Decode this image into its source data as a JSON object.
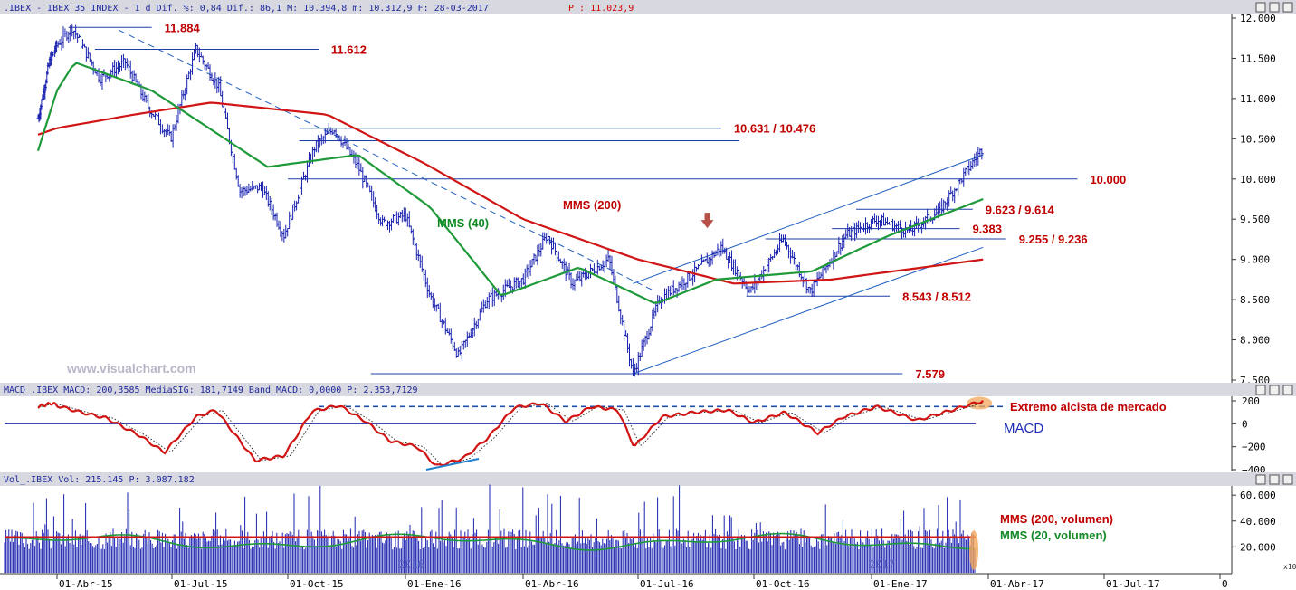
{
  "header_price": ".IBEX - IBEX 35 INDEX -  1 d Dif. %: 0,84 Dif.: 86,1 M: 10.394,8 m: 10.312,9 F: 28-03-2017",
  "header_price_p": "P : 11.023,9",
  "header_macd": "MACD_.IBEX MACD: 200,3585 MediaSIG: 181,7149 Band_MACD: 0,0000 P: 2.353,7129",
  "header_vol": "Vol_.IBEX Vol: 215.145 P: 3.087.182",
  "watermark": "www.visualchart.com",
  "macd_title": "MACD",
  "year_marks": [
    "2016",
    "2017"
  ],
  "volume_scale_note": "x10",
  "colors": {
    "candles": "#1a22b0",
    "mms200": "#d11414",
    "mms40": "#1f9a3a",
    "levels": "#1f3fa8",
    "header": "#1f2a9a",
    "highlight": "#f2a65a"
  },
  "chart_data": [
    {
      "type": "ohlc",
      "title": "IBEX 35 INDEX",
      "x_axis": {
        "labels": [
          "01-Abr-15",
          "01-Jul-15",
          "01-Oct-15",
          "01-Ene-16",
          "01-Abr-16",
          "01-Jul-16",
          "01-Oct-16",
          "01-Ene-17",
          "01-Abr-17",
          "01-Jul-17",
          "0"
        ]
      },
      "y_axis": {
        "ticks": [
          "12.000",
          "11.500",
          "11.000",
          "10.500",
          "10.000",
          "9.500",
          "9.000",
          "8.500",
          "8.000",
          "7.500"
        ],
        "ylim": [
          7500,
          12050
        ]
      },
      "price_path": [
        {
          "x": "2015-03-02",
          "y": 10750
        },
        {
          "x": "2015-03-20",
          "y": 11450
        },
        {
          "x": "2015-04-13",
          "y": 11884
        },
        {
          "x": "2015-05-05",
          "y": 11250
        },
        {
          "x": "2015-05-25",
          "y": 11450
        },
        {
          "x": "2015-06-12",
          "y": 10900
        },
        {
          "x": "2015-06-30",
          "y": 10500
        },
        {
          "x": "2015-07-20",
          "y": 11612
        },
        {
          "x": "2015-08-07",
          "y": 11150
        },
        {
          "x": "2015-08-24",
          "y": 9850
        },
        {
          "x": "2015-09-10",
          "y": 9900
        },
        {
          "x": "2015-09-28",
          "y": 9300
        },
        {
          "x": "2015-10-22",
          "y": 10400
        },
        {
          "x": "2015-11-06",
          "y": 10631
        },
        {
          "x": "2015-11-25",
          "y": 10150
        },
        {
          "x": "2015-12-14",
          "y": 9450
        },
        {
          "x": "2016-01-01",
          "y": 9550
        },
        {
          "x": "2016-01-20",
          "y": 8550
        },
        {
          "x": "2016-02-11",
          "y": 7800
        },
        {
          "x": "2016-03-04",
          "y": 8500
        },
        {
          "x": "2016-04-01",
          "y": 8750
        },
        {
          "x": "2016-04-20",
          "y": 9300
        },
        {
          "x": "2016-05-10",
          "y": 8700
        },
        {
          "x": "2016-06-08",
          "y": 9000
        },
        {
          "x": "2016-06-27",
          "y": 7579
        },
        {
          "x": "2016-07-18",
          "y": 8500
        },
        {
          "x": "2016-08-12",
          "y": 8800
        },
        {
          "x": "2016-09-05",
          "y": 9150
        },
        {
          "x": "2016-09-28",
          "y": 8600
        },
        {
          "x": "2016-10-24",
          "y": 9250
        },
        {
          "x": "2016-11-14",
          "y": 8600
        },
        {
          "x": "2016-12-12",
          "y": 9300
        },
        {
          "x": "2017-01-05",
          "y": 9500
        },
        {
          "x": "2017-01-30",
          "y": 9350
        },
        {
          "x": "2017-02-22",
          "y": 9600
        },
        {
          "x": "2017-03-28",
          "y": 10394
        }
      ],
      "mms200_path": [
        {
          "x": "2015-03-02",
          "y": 10550
        },
        {
          "x": "2015-06-01",
          "y": 10800
        },
        {
          "x": "2015-08-01",
          "y": 10950
        },
        {
          "x": "2015-11-01",
          "y": 10800
        },
        {
          "x": "2016-01-15",
          "y": 10200
        },
        {
          "x": "2016-04-01",
          "y": 9500
        },
        {
          "x": "2016-07-01",
          "y": 9000
        },
        {
          "x": "2016-09-15",
          "y": 8700
        },
        {
          "x": "2016-12-01",
          "y": 8750
        },
        {
          "x": "2017-03-28",
          "y": 9000
        }
      ],
      "mms40_path": [
        {
          "x": "2015-03-02",
          "y": 10350
        },
        {
          "x": "2015-04-15",
          "y": 11450
        },
        {
          "x": "2015-06-15",
          "y": 11100
        },
        {
          "x": "2015-09-15",
          "y": 10150
        },
        {
          "x": "2015-11-25",
          "y": 10300
        },
        {
          "x": "2016-01-20",
          "y": 9650
        },
        {
          "x": "2016-03-15",
          "y": 8550
        },
        {
          "x": "2016-05-15",
          "y": 8900
        },
        {
          "x": "2016-07-15",
          "y": 8450
        },
        {
          "x": "2016-09-01",
          "y": 8750
        },
        {
          "x": "2016-11-15",
          "y": 8850
        },
        {
          "x": "2017-01-15",
          "y": 9300
        },
        {
          "x": "2017-03-28",
          "y": 9750
        }
      ],
      "levels": [
        {
          "label": "11.884",
          "value": 11884,
          "from": "2015-04-10",
          "to": "2015-06-15"
        },
        {
          "label": "11.612",
          "value": 11612,
          "from": "2015-05-01",
          "to": "2015-10-25"
        },
        {
          "label": "10.631 / 10.476",
          "value": 10631,
          "value2": 10476,
          "from": "2015-10-10",
          "to": "2016-09-05"
        },
        {
          "label": "10.000",
          "value": 10000,
          "from": "2015-10-01",
          "to": "2017-06-10"
        },
        {
          "label": "9.623 / 9.614",
          "value": 9623,
          "from": "2016-12-20",
          "to": "2017-03-20"
        },
        {
          "label": "9.383",
          "value": 9383,
          "from": "2016-12-01",
          "to": "2017-03-10"
        },
        {
          "label": "9.255 / 9.236",
          "value": 9255,
          "value2": 9236,
          "from": "2016-10-10",
          "to": "2017-04-15"
        },
        {
          "label": "8.543 / 8.512",
          "value": 8543,
          "from": "2016-09-25",
          "to": "2017-01-15"
        },
        {
          "label": "7.579",
          "value": 7579,
          "from": "2015-12-05",
          "to": "2017-01-25"
        }
      ],
      "trendlines": [
        {
          "style": "dashed",
          "from": {
            "x": "2015-05-20",
            "y": 11850
          },
          "to": {
            "x": "2016-07-15",
            "y": 8600
          }
        },
        {
          "style": "solid",
          "from": {
            "x": "2016-06-27",
            "y": 8700
          },
          "to": {
            "x": "2017-03-28",
            "y": 10300
          }
        },
        {
          "style": "solid",
          "from": {
            "x": "2016-06-27",
            "y": 7579
          },
          "to": {
            "x": "2017-03-28",
            "y": 9150
          }
        }
      ],
      "annotations": [
        {
          "text": "MMS (200)",
          "color": "#c00000"
        },
        {
          "text": "MMS (40)",
          "color": "#128a24"
        }
      ],
      "arrow": {
        "x": "2016-08-25",
        "y": 9400
      }
    },
    {
      "type": "line",
      "title": "MACD",
      "y_axis": {
        "ticks": [
          "200",
          "0",
          "−200",
          "−400"
        ],
        "ylim": [
          -430,
          230
        ]
      },
      "series_path": [
        {
          "x": "2015-03-02",
          "y": 150
        },
        {
          "x": "2015-03-25",
          "y": 180
        },
        {
          "x": "2015-04-20",
          "y": 100
        },
        {
          "x": "2015-05-10",
          "y": 50
        },
        {
          "x": "2015-06-05",
          "y": -100
        },
        {
          "x": "2015-06-25",
          "y": -250
        },
        {
          "x": "2015-07-20",
          "y": 60
        },
        {
          "x": "2015-08-05",
          "y": 120
        },
        {
          "x": "2015-09-05",
          "y": -320
        },
        {
          "x": "2015-09-28",
          "y": -280
        },
        {
          "x": "2015-10-20",
          "y": 110
        },
        {
          "x": "2015-11-10",
          "y": 160
        },
        {
          "x": "2015-12-01",
          "y": 20
        },
        {
          "x": "2015-12-20",
          "y": -150
        },
        {
          "x": "2016-01-10",
          "y": -200
        },
        {
          "x": "2016-01-25",
          "y": -370
        },
        {
          "x": "2016-02-15",
          "y": -300
        },
        {
          "x": "2016-03-05",
          "y": -120
        },
        {
          "x": "2016-03-25",
          "y": 140
        },
        {
          "x": "2016-04-15",
          "y": 180
        },
        {
          "x": "2016-05-05",
          "y": 20
        },
        {
          "x": "2016-05-25",
          "y": 150
        },
        {
          "x": "2016-06-15",
          "y": 120
        },
        {
          "x": "2016-06-28",
          "y": -200
        },
        {
          "x": "2016-07-20",
          "y": 60
        },
        {
          "x": "2016-08-15",
          "y": 100
        },
        {
          "x": "2016-09-10",
          "y": 120
        },
        {
          "x": "2016-10-01",
          "y": 10
        },
        {
          "x": "2016-10-25",
          "y": 100
        },
        {
          "x": "2016-11-20",
          "y": -80
        },
        {
          "x": "2016-12-10",
          "y": 60
        },
        {
          "x": "2017-01-05",
          "y": 150
        },
        {
          "x": "2017-02-05",
          "y": 30
        },
        {
          "x": "2017-03-28",
          "y": 200
        }
      ],
      "annotations": [
        {
          "text": "Extremo alcista de mercado",
          "y": 150
        }
      ]
    },
    {
      "type": "bar",
      "title": "Volumen",
      "y_axis": {
        "ticks": [
          "60.000",
          "40.000",
          "20.000"
        ],
        "ylim": [
          0,
          65000
        ]
      },
      "mms200_volumen": 27500,
      "series": [
        {
          "name": "MMS (200, volumen)",
          "color": "#d11414"
        },
        {
          "name": "MMS (20, volumen)",
          "color": "#1f9a3a"
        }
      ]
    }
  ]
}
